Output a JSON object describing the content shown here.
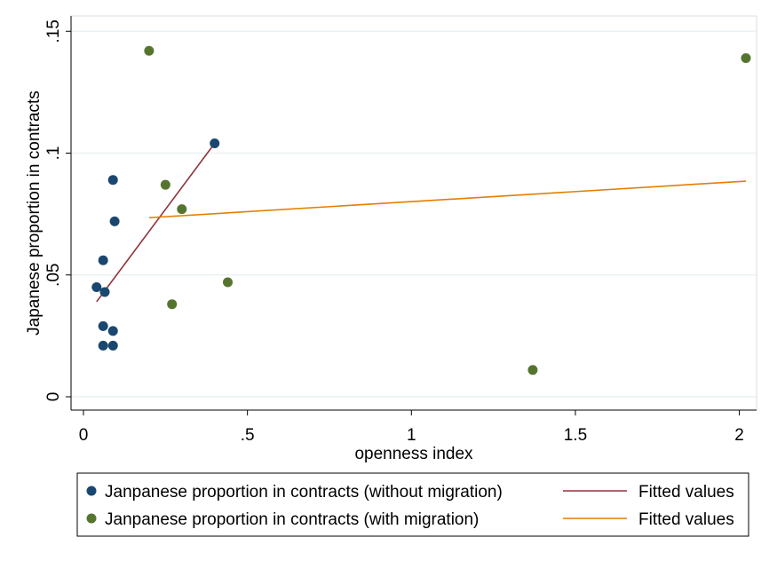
{
  "chart_data": {
    "type": "scatter",
    "title": "",
    "xlabel": "openness index",
    "ylabel": "Japanese proportion in contracts",
    "xlim": [
      0,
      2.0
    ],
    "ylim": [
      0,
      0.15
    ],
    "xticks": [
      0,
      0.5,
      1,
      1.5,
      2
    ],
    "xtick_labels": [
      "0",
      ".5",
      "1",
      "1.5",
      "2"
    ],
    "yticks": [
      0,
      0.05,
      0.1,
      0.15
    ],
    "ytick_labels": [
      "0",
      ".05",
      ".1",
      ".15"
    ],
    "grid": "horizontal",
    "legend_position": "bottom",
    "series": [
      {
        "name": "Janpanese proportion in contracts (without migration)",
        "kind": "scatter",
        "color": "#1a476f",
        "points": [
          [
            0.04,
            0.045
          ],
          [
            0.06,
            0.056
          ],
          [
            0.065,
            0.043
          ],
          [
            0.06,
            0.029
          ],
          [
            0.06,
            0.021
          ],
          [
            0.09,
            0.027
          ],
          [
            0.09,
            0.021
          ],
          [
            0.09,
            0.089
          ],
          [
            0.095,
            0.072
          ],
          [
            0.4,
            0.104
          ]
        ]
      },
      {
        "name": "Janpanese proportion in contracts (with migration)",
        "kind": "scatter",
        "color": "#55752f",
        "points": [
          [
            0.2,
            0.142
          ],
          [
            0.25,
            0.087
          ],
          [
            0.3,
            0.077
          ],
          [
            0.27,
            0.038
          ],
          [
            0.44,
            0.047
          ],
          [
            1.37,
            0.011
          ],
          [
            2.02,
            0.139
          ]
        ]
      },
      {
        "name": "Fitted values",
        "kind": "line",
        "color": "#90353b",
        "points": [
          [
            0.04,
            0.039
          ],
          [
            0.4,
            0.104
          ]
        ]
      },
      {
        "name": "Fitted values",
        "kind": "line",
        "color": "#e37e00",
        "points": [
          [
            0.2,
            0.0735
          ],
          [
            2.02,
            0.0885
          ]
        ]
      }
    ]
  }
}
